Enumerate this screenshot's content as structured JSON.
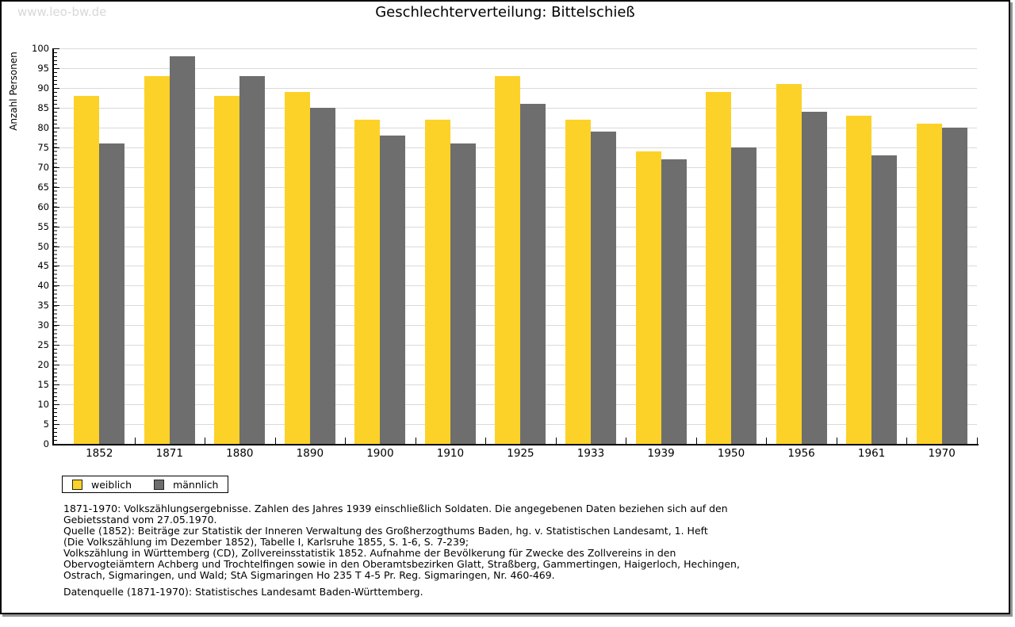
{
  "watermark": "www.leo-bw.de",
  "chart_data": {
    "type": "bar",
    "title": "Geschlechterverteilung: Bittelschieß",
    "ylabel": "Anzahl Personen",
    "xlabel": "",
    "ylim": [
      0,
      100
    ],
    "ytick_step": 5,
    "grid": true,
    "legend_position": "bottom-left",
    "categories": [
      "1852",
      "1871",
      "1880",
      "1890",
      "1900",
      "1910",
      "1925",
      "1933",
      "1939",
      "1950",
      "1956",
      "1961",
      "1970"
    ],
    "series": [
      {
        "name": "weiblich",
        "color": "#fcd228",
        "values": [
          88,
          93,
          88,
          89,
          82,
          82,
          93,
          82,
          74,
          89,
          91,
          83,
          81
        ]
      },
      {
        "name": "männlich",
        "color": "#6e6e6e",
        "values": [
          76,
          98,
          93,
          85,
          78,
          76,
          86,
          79,
          72,
          75,
          84,
          73,
          80
        ]
      }
    ]
  },
  "colors": {
    "weiblich": "#fcd228",
    "männlich": "#6e6e6e",
    "gridline": "#dadada",
    "axis": "#000000",
    "frame_shadow": "#949494",
    "watermark": "#d8d8d8"
  },
  "footer": {
    "lines": [
      "1871-1970: Volkszählungsergebnisse. Zahlen des Jahres 1939 einschließlich Soldaten. Die angegebenen Daten beziehen sich auf den",
      "Gebietsstand vom 27.05.1970.",
      "Quelle (1852): Beiträge zur Statistik der Inneren Verwaltung des Großherzogthums Baden, hg. v. Statistischen Landesamt, 1. Heft",
      "(Die Volkszählung im Dezember 1852), Tabelle I, Karlsruhe 1855, S. 1-6, S. 7-239;",
      "Volkszählung in Württemberg (CD), Zollvereinsstatistik 1852. Aufnahme der Bevölkerung für Zwecke des Zollvereins in den",
      "Obervogteiämtern Achberg und Trochtelfingen sowie in den Oberamtsbezirken Glatt, Straßberg, Gammertingen, Haigerloch, Hechingen,",
      "Ostrach, Sigmaringen, und Wald; StA Sigmaringen Ho 235 T 4-5 Pr. Reg. Sigmaringen, Nr. 460-469."
    ],
    "datasource": "Datenquelle (1871-1970): Statistisches Landesamt Baden-Württemberg."
  }
}
